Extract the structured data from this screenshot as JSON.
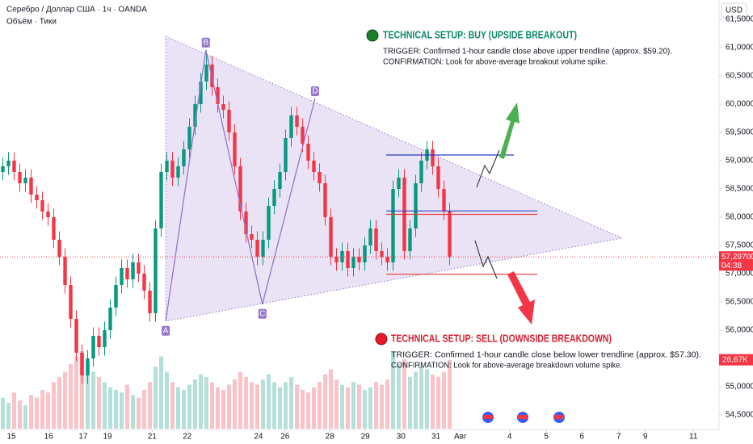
{
  "header": {
    "symbol": "Серебро / Доллар США · 1ч · OANDA",
    "volume_label": "Объём · Тики",
    "currency": "USD"
  },
  "chart_data": {
    "type": "candlestick",
    "x": [
      0.5,
      1.5,
      2.5,
      3.5,
      4.5,
      5.5,
      6.5,
      7.5,
      8.5,
      9.5,
      10.5,
      11.5,
      12.5,
      13.5,
      14.5,
      15.5,
      16.5,
      17.5,
      18.5,
      19.5,
      20.5,
      21.5,
      22.5,
      23.5,
      24.5,
      25.5,
      26.5,
      27.5,
      28.5,
      29.5,
      30.5,
      31.5,
      32.5,
      33.5,
      34.5,
      35.5,
      36.5,
      37.5,
      38.5,
      39.5,
      40.5,
      41.5,
      42.5,
      43.5,
      44.5,
      45.5,
      46.5,
      47.5,
      48.5,
      49.5,
      50.5,
      51.5,
      52.5,
      53.5,
      54.5,
      55.5,
      56.5,
      57.5,
      58.5,
      59.5,
      60.5,
      61.5,
      62.5,
      63.5,
      64.5,
      65.5,
      66.5,
      67.5,
      68.5,
      69.5,
      70.5,
      71.5,
      72.5,
      73.5,
      74.5,
      75.5,
      76.5,
      77.5,
      78.5,
      79.5
    ],
    "open": [
      58.8,
      58.9,
      59.0,
      58.8,
      58.6,
      58.7,
      58.4,
      58.3,
      58.1,
      58.0,
      57.6,
      57.3,
      56.8,
      56.2,
      55.6,
      55.2,
      55.5,
      55.9,
      55.7,
      56.0,
      56.4,
      56.8,
      57.1,
      56.9,
      57.2,
      57.0,
      56.7,
      56.3,
      57.8,
      58.8,
      59.0,
      58.7,
      58.9,
      59.2,
      59.6,
      60.0,
      60.4,
      60.7,
      60.3,
      60.0,
      59.9,
      59.5,
      58.9,
      58.1,
      57.7,
      57.6,
      57.3,
      57.6,
      58.2,
      58.5,
      58.8,
      59.4,
      59.8,
      59.6,
      59.3,
      59.0,
      58.8,
      58.6,
      58.0,
      57.3,
      57.2,
      57.4,
      57.1,
      57.3,
      57.2,
      57.5,
      57.8,
      57.4,
      57.3,
      57.2,
      58.5,
      58.7,
      57.4,
      57.8,
      58.6,
      59.0,
      59.2,
      58.9,
      58.5,
      58.1
    ],
    "high": [
      59.05,
      59.15,
      59.15,
      58.95,
      58.85,
      58.85,
      58.55,
      58.45,
      58.25,
      58.15,
      57.75,
      57.45,
      56.95,
      56.35,
      55.75,
      55.65,
      56.05,
      56.05,
      56.15,
      56.55,
      56.95,
      57.25,
      57.25,
      57.35,
      57.35,
      57.15,
      56.85,
      57.95,
      58.95,
      59.15,
      59.15,
      59.05,
      59.35,
      59.75,
      60.15,
      60.55,
      60.95,
      60.85,
      60.45,
      60.15,
      60.05,
      59.65,
      59.05,
      58.25,
      57.85,
      57.75,
      57.75,
      58.35,
      58.65,
      58.95,
      59.55,
      59.95,
      59.95,
      59.75,
      59.45,
      59.15,
      58.95,
      58.75,
      58.15,
      57.45,
      57.55,
      57.55,
      57.45,
      57.45,
      57.65,
      57.95,
      57.95,
      57.55,
      57.45,
      58.65,
      58.85,
      58.85,
      57.95,
      58.75,
      59.15,
      59.35,
      59.35,
      59.05,
      58.65,
      58.25
    ],
    "low": [
      58.65,
      58.75,
      58.65,
      58.45,
      58.45,
      58.25,
      58.15,
      57.95,
      57.85,
      57.45,
      57.15,
      56.65,
      56.05,
      55.45,
      55.05,
      55.05,
      55.35,
      55.55,
      55.55,
      55.85,
      56.25,
      56.65,
      56.75,
      56.75,
      56.85,
      56.55,
      56.15,
      56.15,
      57.65,
      58.65,
      58.55,
      58.55,
      58.75,
      59.05,
      59.45,
      59.85,
      60.25,
      60.15,
      59.85,
      59.75,
      59.35,
      58.75,
      57.95,
      57.55,
      57.45,
      57.15,
      57.15,
      57.45,
      58.05,
      58.35,
      58.65,
      59.25,
      59.45,
      59.15,
      58.85,
      58.65,
      58.45,
      57.85,
      57.15,
      57.05,
      57.05,
      56.95,
      56.95,
      57.05,
      57.05,
      57.35,
      57.25,
      57.15,
      57.05,
      57.05,
      58.35,
      57.25,
      57.25,
      57.65,
      58.45,
      58.85,
      58.75,
      58.35,
      57.95,
      57.15
    ],
    "close": [
      58.9,
      59.0,
      58.8,
      58.6,
      58.7,
      58.4,
      58.3,
      58.1,
      58.0,
      57.6,
      57.3,
      56.8,
      56.2,
      55.6,
      55.2,
      55.5,
      55.9,
      55.7,
      56.0,
      56.4,
      56.8,
      57.1,
      56.9,
      57.2,
      57.0,
      56.7,
      56.3,
      57.8,
      58.8,
      59.0,
      58.7,
      58.9,
      59.2,
      59.6,
      60.0,
      60.4,
      60.7,
      60.3,
      60.0,
      59.9,
      59.5,
      58.9,
      58.1,
      57.7,
      57.6,
      57.3,
      57.6,
      58.2,
      58.5,
      58.8,
      59.4,
      59.8,
      59.6,
      59.3,
      59.0,
      58.8,
      58.6,
      58.0,
      57.3,
      57.2,
      57.4,
      57.1,
      57.3,
      57.2,
      57.5,
      57.8,
      57.4,
      57.3,
      57.2,
      58.5,
      58.7,
      57.4,
      57.8,
      58.6,
      59.0,
      59.2,
      58.9,
      58.5,
      58.1,
      57.3
    ],
    "volume": [
      12,
      10,
      14,
      11,
      9,
      13,
      12,
      15,
      14,
      18,
      20,
      22,
      25,
      28,
      30,
      26,
      22,
      20,
      18,
      16,
      15,
      14,
      17,
      13,
      12,
      15,
      18,
      24,
      28,
      22,
      18,
      16,
      15,
      17,
      19,
      21,
      20,
      18,
      16,
      15,
      17,
      19,
      22,
      20,
      18,
      17,
      19,
      21,
      18,
      16,
      18,
      20,
      17,
      15,
      14,
      16,
      18,
      21,
      23,
      19,
      17,
      16,
      18,
      17,
      15,
      16,
      18,
      17,
      19,
      30,
      25,
      27,
      20,
      22,
      24,
      23,
      21,
      20,
      22,
      26.67
    ],
    "last_volume_label": "26,67K",
    "up_color": "#089981",
    "down_color": "#f23645",
    "xlim": [
      0,
      127
    ],
    "xticks": [
      {
        "value": 2,
        "label": "15"
      },
      {
        "value": 8.6,
        "label": "16"
      },
      {
        "value": 14.7,
        "label": "17"
      },
      {
        "value": 19,
        "label": "19"
      },
      {
        "value": 26.9,
        "label": "21"
      },
      {
        "value": 33.1,
        "label": "22"
      },
      {
        "value": 45.7,
        "label": "24"
      },
      {
        "value": 50.4,
        "label": "26"
      },
      {
        "value": 58.3,
        "label": "28"
      },
      {
        "value": 64.6,
        "label": "29"
      },
      {
        "value": 70.9,
        "label": "30"
      },
      {
        "value": 77.1,
        "label": "31"
      },
      {
        "value": 81.4,
        "label": "Авг"
      },
      {
        "value": 90.1,
        "label": "4"
      },
      {
        "value": 96.6,
        "label": "5"
      },
      {
        "value": 102.9,
        "label": "6"
      },
      {
        "value": 109.4,
        "label": "7"
      },
      {
        "value": 114.1,
        "label": "9"
      },
      {
        "value": 122.6,
        "label": "11"
      }
    ],
    "ylim": [
      54.25,
      61.5
    ],
    "yticks": [
      {
        "value": 54.5,
        "label": "54,50000"
      },
      {
        "value": 55,
        "label": "55,00000"
      },
      {
        "value": 55.5,
        "label": "55,50000"
      },
      {
        "value": 56,
        "label": "56,00000"
      },
      {
        "value": 56.5,
        "label": "56,50000"
      },
      {
        "value": 57,
        "label": "57,00000"
      },
      {
        "value": 57.5,
        "label": "57,50000"
      },
      {
        "value": 58,
        "label": "58,00000"
      },
      {
        "value": 58.5,
        "label": "58,50000"
      },
      {
        "value": 59,
        "label": "59,00000"
      },
      {
        "value": 59.5,
        "label": "59,50000"
      },
      {
        "value": 60,
        "label": "60,00000"
      },
      {
        "value": 60.5,
        "label": "60,50000"
      },
      {
        "value": 61,
        "label": "61,00000"
      },
      {
        "value": 61.5,
        "label": "61,50000"
      }
    ],
    "last_price": {
      "value": 57.297,
      "label": "57,29700",
      "countdown": "04:38"
    },
    "triangle": {
      "x": [
        29.3,
        110,
        29.3
      ],
      "y": [
        61.2,
        57.63,
        56.16
      ]
    },
    "wave": {
      "labels": [
        "A",
        "B",
        "C",
        "D"
      ],
      "x": [
        29.3,
        36.4,
        46.4,
        55.7
      ],
      "y": [
        56.16,
        60.96,
        56.46,
        60.1
      ]
    },
    "levels": [
      {
        "value": 59.1,
        "color": "#2a3fbf",
        "x": [
          68.3,
          90.9
        ]
      },
      {
        "value": 58.11,
        "color": "#2a3fbf",
        "x": [
          68.3,
          95
        ]
      },
      {
        "value": 58.05,
        "color": "#e53935",
        "x": [
          68.3,
          95
        ]
      },
      {
        "value": 56.99,
        "color": "#e53935",
        "x": [
          68.3,
          95
        ]
      }
    ]
  },
  "annotations": {
    "buy": {
      "title": "TECHNICAL SETUP: BUY (UPSIDE BREAKOUT)",
      "lines": [
        "TRIGGER: Confirmed 1-hour candle close above upper trendline (approx. $59.20).",
        "CONFIRMATION: Look for above-average breakout volume spike."
      ]
    },
    "sell": {
      "title": "TECHNICAL SETUP: SELL (DOWNSIDE BREAKDOWN)",
      "lines": [
        "TRIGGER: Confirmed 1-hour candle close below lower trendline (approx. $57.30).",
        "CONFIRMATION: Look for above-average breakdown volume spike."
      ]
    }
  }
}
